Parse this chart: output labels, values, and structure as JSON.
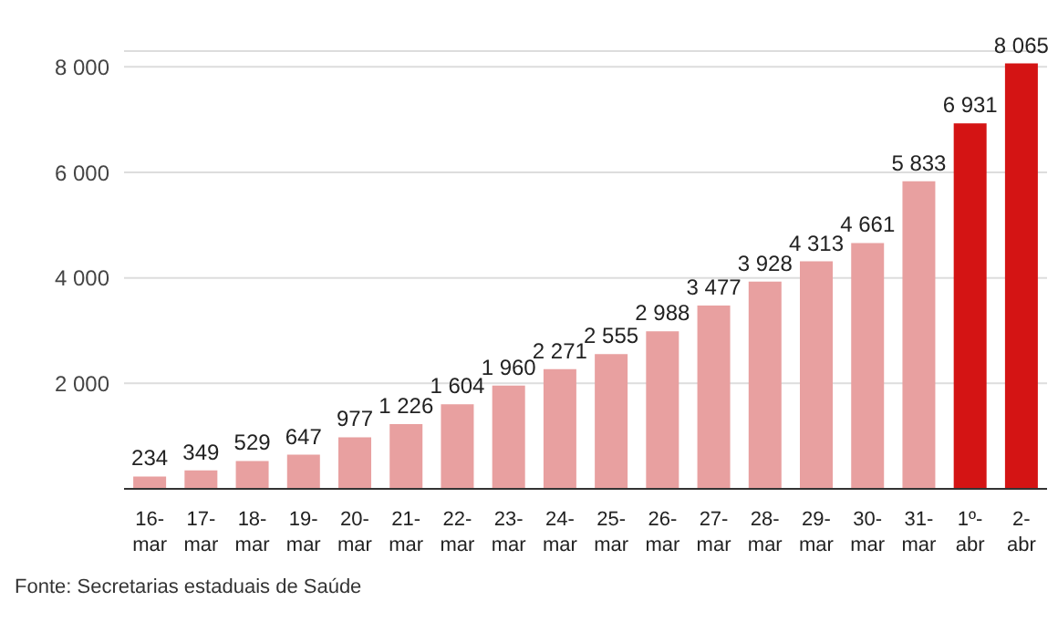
{
  "chart_data": {
    "type": "bar",
    "categories": [
      "16-mar",
      "17-mar",
      "18-mar",
      "19-mar",
      "20-mar",
      "21-mar",
      "22-mar",
      "23-mar",
      "24-mar",
      "25-mar",
      "26-mar",
      "27-mar",
      "28-mar",
      "29-mar",
      "30-mar",
      "31-mar",
      "1º-abr",
      "2-abr"
    ],
    "values": [
      234,
      349,
      529,
      647,
      977,
      1226,
      1604,
      1960,
      2271,
      2555,
      2988,
      3477,
      3928,
      4313,
      4661,
      5833,
      6931,
      8065
    ],
    "value_labels": [
      "234",
      "349",
      "529",
      "647",
      "977",
      "1 226",
      "1 604",
      "1 960",
      "2 271",
      "2 555",
      "2 988",
      "3 477",
      "3 928",
      "4 313",
      "4 661",
      "5 833",
      "6 931",
      "8 065"
    ],
    "colors": [
      "#e8a0a0",
      "#e8a0a0",
      "#e8a0a0",
      "#e8a0a0",
      "#e8a0a0",
      "#e8a0a0",
      "#e8a0a0",
      "#e8a0a0",
      "#e8a0a0",
      "#e8a0a0",
      "#e8a0a0",
      "#e8a0a0",
      "#e8a0a0",
      "#e8a0a0",
      "#e8a0a0",
      "#e8a0a0",
      "#d41414",
      "#d41414"
    ],
    "ylim": [
      0,
      8300
    ],
    "yticks": [
      {
        "value": 2000,
        "label": "2 000"
      },
      {
        "value": 4000,
        "label": "4 000"
      },
      {
        "value": 6000,
        "label": "6 000"
      },
      {
        "value": 8000,
        "label": "8 000"
      }
    ],
    "grid": "y",
    "annotations": [
      "Fonte: Secretarias estaduais de Saúde"
    ]
  }
}
